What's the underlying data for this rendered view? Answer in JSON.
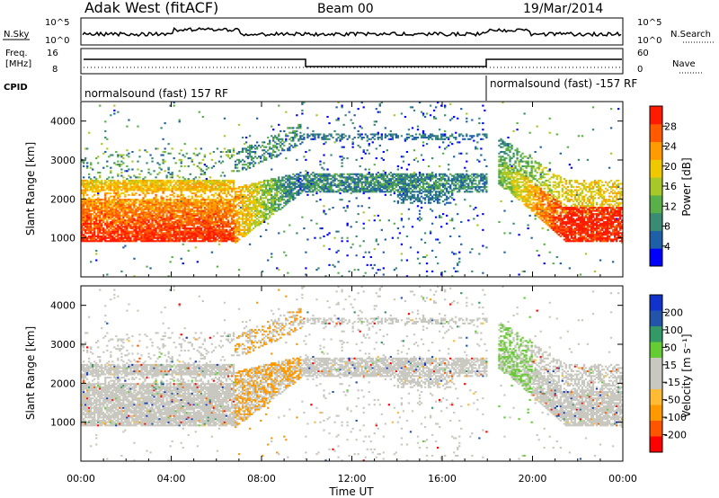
{
  "header": {
    "site": "Adak West (fitACF)",
    "beam": "Beam 00",
    "date": "19/Mar/2014"
  },
  "status_strip": {
    "nsky_label": "N.Sky",
    "nsky_ticks": [
      "10^5",
      "10^0"
    ],
    "nsearch_label": "N.Search",
    "freq_label": "Freq.",
    "freq_unit": "[MHz]",
    "freq_ticks": [
      "16",
      "8"
    ],
    "nave_label": "Nave",
    "nave_ticks": [
      "60",
      "0"
    ],
    "cpid_label": "CPID",
    "cpid_segments": [
      "normalsound (fast) 157 RF",
      "normalsound (fast) -157 RF"
    ]
  },
  "colors": {
    "power_scale": [
      "#0000ff",
      "#1f5fa8",
      "#3a8a74",
      "#5ab048",
      "#a8c82a",
      "#f0c800",
      "#ff9a00",
      "#ff5a00",
      "#ff1a00"
    ],
    "velocity_scale": [
      "#ff0000",
      "#ff5500",
      "#ff9900",
      "#ffbb33",
      "#c8c8c0",
      "#c8c8c0",
      "#66cc33",
      "#339966",
      "#2255aa",
      "#1133cc"
    ],
    "ground_scatter": "#c8c8c0"
  },
  "chart_data": [
    {
      "type": "heatmap",
      "panel": "power",
      "ylabel": "Slant Range [km]",
      "yticks": [
        "1000",
        "2000",
        "3000",
        "4000"
      ],
      "ylim": [
        0,
        4500
      ],
      "xlim": [
        "00:00",
        "24:00"
      ],
      "colorbar": {
        "label": "Power [dB]",
        "ticks": [
          "4",
          "8",
          "12",
          "16",
          "20",
          "24",
          "28"
        ],
        "range": [
          0,
          32
        ]
      }
    },
    {
      "type": "heatmap",
      "panel": "velocity",
      "ylabel": "Slant Range [km]",
      "yticks": [
        "1000",
        "2000",
        "3000",
        "4000"
      ],
      "ylim": [
        0,
        4500
      ],
      "xlim": [
        "00:00",
        "24:00"
      ],
      "xticks": [
        "00:00",
        "04:00",
        "08:00",
        "12:00",
        "16:00",
        "20:00",
        "00:00"
      ],
      "xlabel": "Time UT",
      "colorbar": {
        "label": "Velocity [m s⁻¹]",
        "ticks": [
          "200",
          "100",
          "50",
          "15",
          "-15",
          "-50",
          "-100",
          "-200"
        ],
        "range": [
          -250,
          250
        ]
      }
    }
  ]
}
